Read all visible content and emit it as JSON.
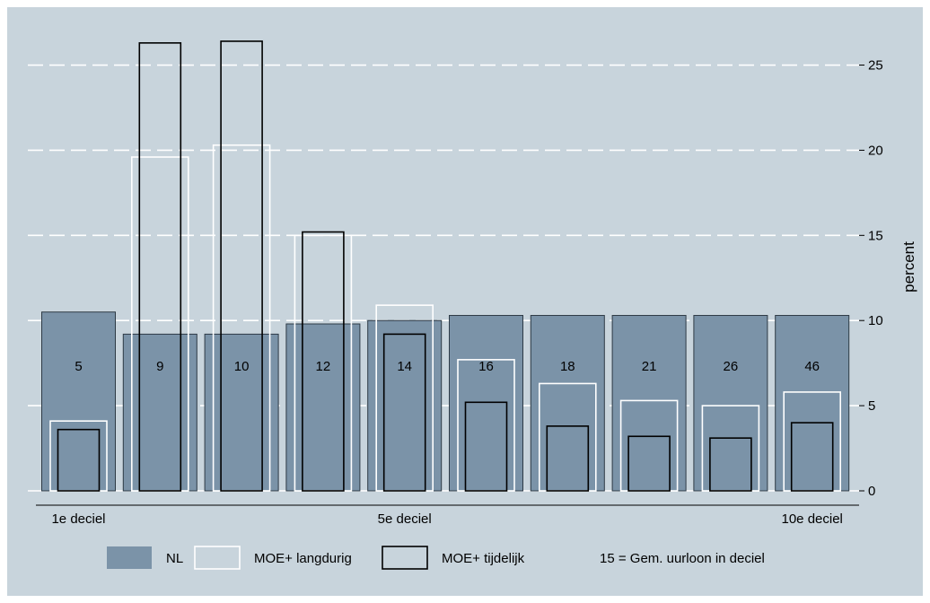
{
  "chart_data": {
    "type": "bar",
    "categories": [
      "1",
      "2",
      "3",
      "4",
      "5",
      "6",
      "7",
      "8",
      "9",
      "10"
    ],
    "category_labels": [
      {
        "index": 0,
        "text": "1e deciel"
      },
      {
        "index": 4,
        "text": "5e deciel"
      },
      {
        "index": 9,
        "text": "10e deciel"
      }
    ],
    "series": [
      {
        "name": "NL",
        "values": [
          10.5,
          9.2,
          9.2,
          9.8,
          10.0,
          10.3,
          10.3,
          10.3,
          10.3,
          10.3
        ],
        "color": "#7b93a8"
      },
      {
        "name": "MOE+ langdurig",
        "values": [
          4.1,
          19.6,
          20.3,
          15.0,
          10.9,
          7.7,
          6.3,
          5.3,
          5.0,
          5.8
        ],
        "color": "#ffffff"
      },
      {
        "name": "MOE+ tijdelijk",
        "values": [
          3.6,
          26.3,
          26.4,
          15.2,
          9.2,
          5.2,
          3.8,
          3.2,
          3.1,
          4.0
        ],
        "color": "#000000"
      }
    ],
    "bar_labels": [
      "5",
      "9",
      "10",
      "12",
      "14",
      "16",
      "18",
      "21",
      "26",
      "46"
    ],
    "legend_note": "15 = Gem. uurloon in deciel",
    "ylabel": "percent",
    "xlabel": "",
    "ylim": [
      0,
      28.4
    ],
    "yticks": [
      0,
      5,
      10,
      15,
      20,
      25
    ],
    "grid": true,
    "legend_position": "bottom",
    "background": "#c8d4dc"
  }
}
